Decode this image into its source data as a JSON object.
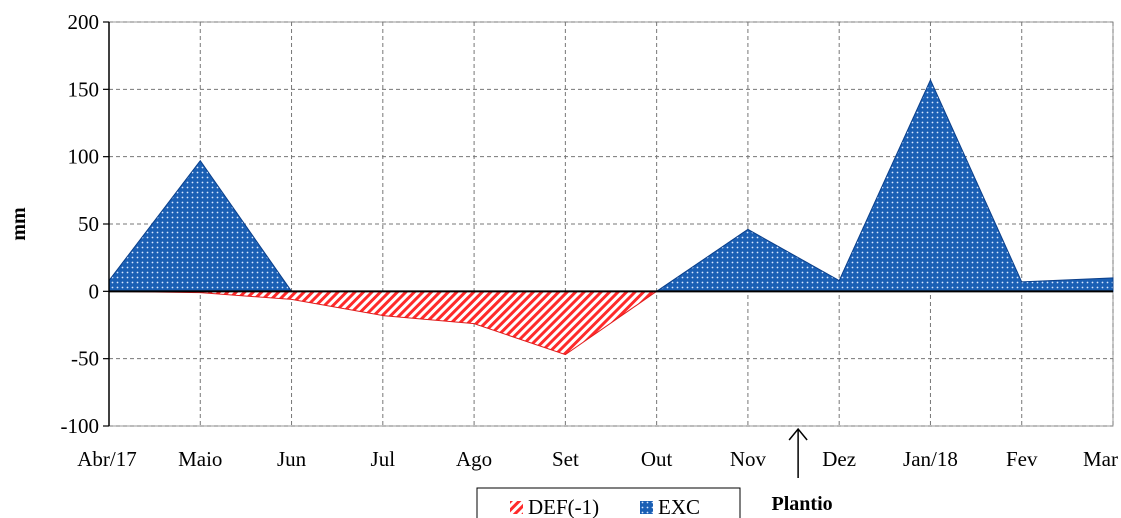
{
  "chart_data": {
    "type": "area",
    "title": "",
    "xlabel": "",
    "ylabel": "mm",
    "ylim": [
      -100,
      200
    ],
    "yticks": [
      200,
      150,
      100,
      50,
      0,
      -50,
      -100
    ],
    "grid": true,
    "legend_position": "bottom-center",
    "categories": [
      "Abr/17",
      "Maio",
      "Jun",
      "Jul",
      "Ago",
      "Set",
      "Out",
      "Nov",
      "Dez",
      "Jan/18",
      "Fev",
      "Mar"
    ],
    "series": [
      {
        "name": "DEF(-1)",
        "pattern": "diagonal-hatch",
        "color": "#ff2a2a",
        "values": [
          0,
          -1,
          -6,
          -18,
          -24,
          -47,
          0,
          0,
          0,
          0,
          0,
          0
        ]
      },
      {
        "name": "EXC",
        "pattern": "dotted",
        "color": "#1a5fb4",
        "values": [
          8,
          97,
          0,
          0,
          0,
          0,
          0,
          46,
          8,
          157,
          7,
          10
        ]
      }
    ],
    "annotations": [
      {
        "text": "Plantio",
        "arrow": "up",
        "x_between": [
          "Nov",
          "Dez"
        ],
        "x_fraction": 0.55
      }
    ]
  }
}
